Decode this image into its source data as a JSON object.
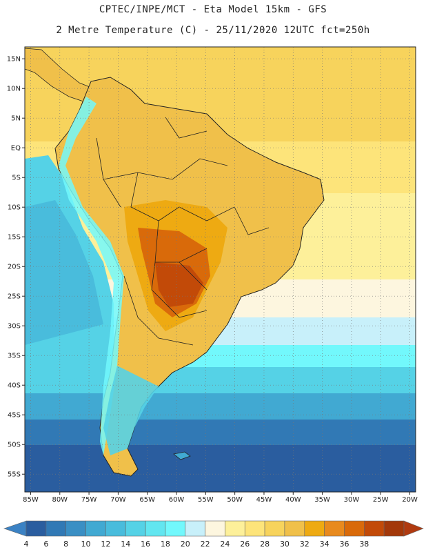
{
  "header": {
    "title_line1": "CPTEC/INPE/MCT -  Eta Model 15km - GFS",
    "title_line2": "2 Metre Temperature (C) - 25/11/2020 12UTC fct=250h"
  },
  "map": {
    "lat_labels": [
      "15N",
      "10N",
      "5N",
      "EQ",
      "5S",
      "10S",
      "15S",
      "20S",
      "25S",
      "30S",
      "35S",
      "40S",
      "45S",
      "50S",
      "55S"
    ],
    "lat_values": [
      15,
      10,
      5,
      0,
      -5,
      -10,
      -15,
      -20,
      -25,
      -30,
      -35,
      -40,
      -45,
      -50,
      -55
    ],
    "lon_labels": [
      "85W",
      "80W",
      "75W",
      "70W",
      "65W",
      "60W",
      "55W",
      "50W",
      "45W",
      "40W",
      "35W",
      "30W",
      "25W",
      "20W"
    ],
    "lon_values": [
      -85,
      -80,
      -75,
      -70,
      -65,
      -60,
      -55,
      -50,
      -45,
      -40,
      -35,
      -30,
      -25,
      -20
    ],
    "lat_range": [
      -58,
      17
    ],
    "lon_range": [
      -86,
      -19
    ],
    "grid": "dotted"
  },
  "colorbar": {
    "labels": [
      "4",
      "6",
      "8",
      "10",
      "12",
      "14",
      "16",
      "18",
      "20",
      "22",
      "24",
      "26",
      "28",
      "30",
      "32",
      "34",
      "36",
      "38"
    ],
    "colors": [
      "#2a5d9f",
      "#3179b5",
      "#3a8fc4",
      "#41a9d2",
      "#49bcdc",
      "#55d2e6",
      "#62e6f0",
      "#72f8fc",
      "#c8f0fa",
      "#fdf6df",
      "#fdf09a",
      "#fde47a",
      "#f7d35c",
      "#f0c04a",
      "#eeaa12",
      "#e88a1e",
      "#d96a0a",
      "#c24a08",
      "#a3380a"
    ],
    "left_color": "#3b82c4",
    "right_color": "#b03a10"
  }
}
